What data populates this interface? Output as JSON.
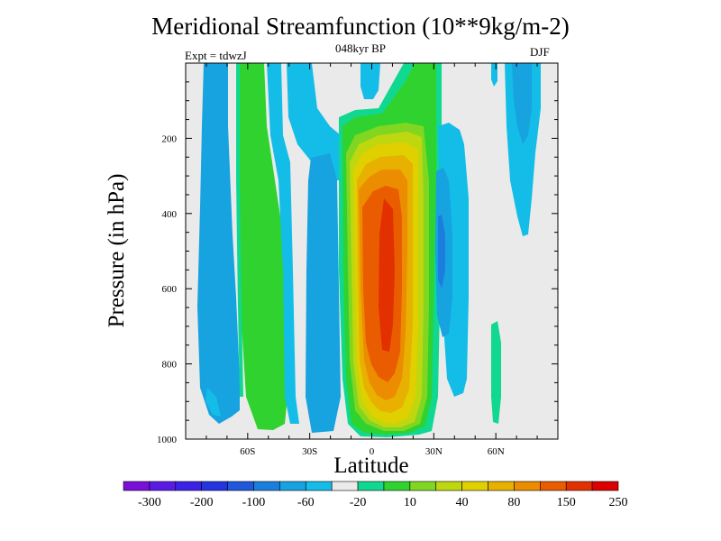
{
  "chart_data": {
    "type": "heatmap",
    "title": "Meridional Streamfunction (10**9kg/m-2)",
    "subtitle": "048kyr BP",
    "left_note": "Expt = tdwzJ",
    "right_note": "DJF",
    "xlabel": "Latitude",
    "ylabel": "Pressure (in hPa)",
    "x_ticks": [
      {
        "value": -60,
        "label": "60S"
      },
      {
        "value": -30,
        "label": "30S"
      },
      {
        "value": 0,
        "label": "0"
      },
      {
        "value": 30,
        "label": "30N"
      },
      {
        "value": 60,
        "label": "60N"
      }
    ],
    "y_ticks": [
      200,
      400,
      600,
      800,
      1000
    ],
    "xlim": [
      -90,
      90
    ],
    "ylim": [
      1000,
      0
    ],
    "colorbar": {
      "levels": [
        "-300",
        "-200",
        "-100",
        "-60",
        "-20",
        "10",
        "40",
        "80",
        "150",
        "250"
      ],
      "colors": [
        "#7a10d8",
        "#5a1ae6",
        "#3b22e6",
        "#2434e0",
        "#1f58dc",
        "#1b7ede",
        "#17a2e0",
        "#13bde8",
        "#eaeaea",
        "#10d890",
        "#2fd22f",
        "#80d620",
        "#bfd70f",
        "#e0d000",
        "#e8b000",
        "#ec8c00",
        "#ea5c00",
        "#e23000",
        "#dc0000"
      ]
    },
    "field": {
      "description_cells": [
        {
          "lat_range": [
            -80,
            -72
          ],
          "p_range": [
            20,
            960
          ],
          "level": "-20"
        },
        {
          "lat_range": [
            -64,
            -44
          ],
          "p_range": [
            20,
            980
          ],
          "level": "10"
        },
        {
          "lat_range": [
            -29,
            -17
          ],
          "p_range": [
            270,
            980
          ],
          "level": "-20"
        },
        {
          "lat_range": [
            -14,
            27
          ],
          "p_range": [
            40,
            990
          ],
          "level": "40"
        },
        {
          "lat_range": [
            -9,
            22
          ],
          "p_range": [
            150,
            960
          ],
          "level": "80"
        },
        {
          "lat_range": [
            -2,
            14
          ],
          "p_range": [
            290,
            860
          ],
          "level": "150"
        },
        {
          "lat_range": [
            2,
            10
          ],
          "p_range": [
            370,
            810
          ],
          "level": "250"
        },
        {
          "lat_range": [
            28,
            44
          ],
          "p_range": [
            150,
            930
          ],
          "level": "-20"
        },
        {
          "lat_range": [
            58,
            68
          ],
          "p_range": [
            20,
            630
          ],
          "level": "-20"
        }
      ]
    }
  }
}
